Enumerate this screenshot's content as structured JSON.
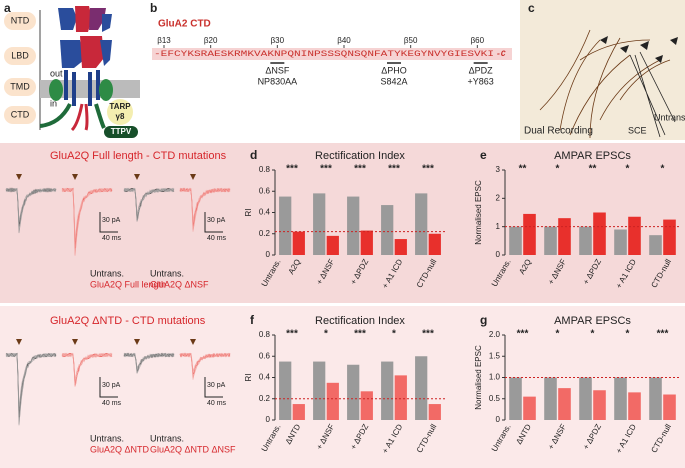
{
  "panel_a": {
    "label": "a",
    "domains": [
      "NTD",
      "LBD",
      "TMD",
      "CTD"
    ],
    "out": "out",
    "in": "in",
    "tarp": [
      "TARP",
      "γ8"
    ],
    "ttpv": "TTPV"
  },
  "panel_b": {
    "label": "b",
    "title": "GluA2 CTD",
    "markers": [
      "β13",
      "β20",
      "β30",
      "β40",
      "β50",
      "β60"
    ],
    "sequence": "-EFCYKSRAESKRMKVAKNPQNINPSSSQNSQNFATYKEGYNVYGIESVKI",
    "c_term": "-C",
    "mutations": [
      {
        "name": "ΔNSF",
        "detail": "NP830AA"
      },
      {
        "name": "ΔPHO",
        "detail": "S842A"
      },
      {
        "name": "ΔPDZ",
        "detail": "+Y863"
      }
    ]
  },
  "panel_c": {
    "label": "c",
    "caption": "Dual Recording",
    "sce": "SCE",
    "untrans": "Untrans."
  },
  "rows": [
    {
      "title": "GluA2Q Full length - CTD mutations",
      "trace_labels": [
        {
          "top": "Untrans.",
          "bottom": "GluA2Q Full length"
        },
        {
          "top": "Untrans.",
          "bottom": "GluA2Q ΔNSF"
        }
      ],
      "scale": [
        "30 pA",
        "40 ms"
      ]
    },
    {
      "title": "GluA2Q ΔNTD - CTD mutations",
      "trace_labels": [
        {
          "top": "Untrans.",
          "bottom": "GluA2Q ΔNTD"
        },
        {
          "top": "Untrans.",
          "bottom": "GluA2Q ΔNTD ΔNSF"
        }
      ],
      "scale": [
        "30 pA",
        "40 ms"
      ]
    }
  ],
  "chart_data": [
    {
      "type": "bar",
      "panel": "d",
      "title": "Rectification Index",
      "y_label": "RI",
      "categories": [
        "A2Q",
        "+ ΔNSF",
        "+ ΔPDZ",
        "+ A1 ICD",
        "CTD-null"
      ],
      "series": [
        {
          "name": "Untrans.",
          "color": "#9a9a9a",
          "values": [
            0.55,
            0.58,
            0.55,
            0.47,
            0.58
          ]
        },
        {
          "color": "#e8302c",
          "values": [
            0.22,
            0.18,
            0.23,
            0.15,
            0.2
          ]
        }
      ],
      "significance": [
        "***",
        "***",
        "***",
        "***",
        "***"
      ],
      "reference_line": 0.22,
      "ylim": [
        0,
        0.8
      ],
      "yticks": [
        0,
        0.2,
        0.4,
        0.6,
        0.8
      ]
    },
    {
      "type": "bar",
      "panel": "e",
      "title": "AMPAR EPSCs",
      "y_label": "Normalised EPSC",
      "categories": [
        "A2Q",
        "+ ΔNSF",
        "+ ΔPDZ",
        "+ A1 ICD",
        "CTD-null"
      ],
      "series": [
        {
          "name": "Untrans.",
          "color": "#9a9a9a",
          "values": [
            1,
            1,
            1,
            0.9,
            0.7
          ]
        },
        {
          "color": "#e8302c",
          "values": [
            1.45,
            1.3,
            1.5,
            1.35,
            1.25
          ]
        }
      ],
      "significance": [
        "**",
        "*",
        "**",
        "*",
        "*"
      ],
      "reference_line": 1,
      "ylim": [
        0,
        3
      ],
      "yticks": [
        0,
        1,
        2,
        3
      ]
    },
    {
      "type": "bar",
      "panel": "f",
      "title": "Rectification Index",
      "y_label": "RI",
      "categories": [
        "ΔNTD",
        "+ ΔNSF",
        "+ ΔPDZ",
        "+ A1 ICD",
        "CTD-null"
      ],
      "series": [
        {
          "name": "Untrans.",
          "color": "#9a9a9a",
          "values": [
            0.55,
            0.55,
            0.52,
            0.55,
            0.6
          ]
        },
        {
          "color": "#f26a66",
          "values": [
            0.15,
            0.35,
            0.27,
            0.42,
            0.15
          ]
        }
      ],
      "significance": [
        "***",
        "*",
        "***",
        "*",
        "***"
      ],
      "reference_line": 0.2,
      "ylim": [
        0,
        0.8
      ],
      "yticks": [
        0,
        0.2,
        0.4,
        0.6,
        0.8
      ]
    },
    {
      "type": "bar",
      "panel": "g",
      "title": "AMPAR EPSCs",
      "y_label": "Normalised EPSC",
      "categories": [
        "ΔNTD",
        "+ ΔNSF",
        "+ ΔPDZ",
        "+ A1 ICD",
        "CTD-null"
      ],
      "series": [
        {
          "name": "Untrans.",
          "color": "#9a9a9a",
          "values": [
            1,
            1,
            1,
            1,
            1
          ]
        },
        {
          "color": "#f26a66",
          "values": [
            0.55,
            0.75,
            0.7,
            0.65,
            0.6
          ]
        }
      ],
      "significance": [
        "***",
        "*",
        "*",
        "*",
        "***"
      ],
      "reference_line": 1,
      "ylim": [
        0,
        2
      ],
      "yticks": [
        0,
        0.5,
        {
          "value": 1,
          "label": "1.0"
        },
        1.5,
        {
          "value": 2,
          "label": "2.0"
        }
      ]
    }
  ]
}
